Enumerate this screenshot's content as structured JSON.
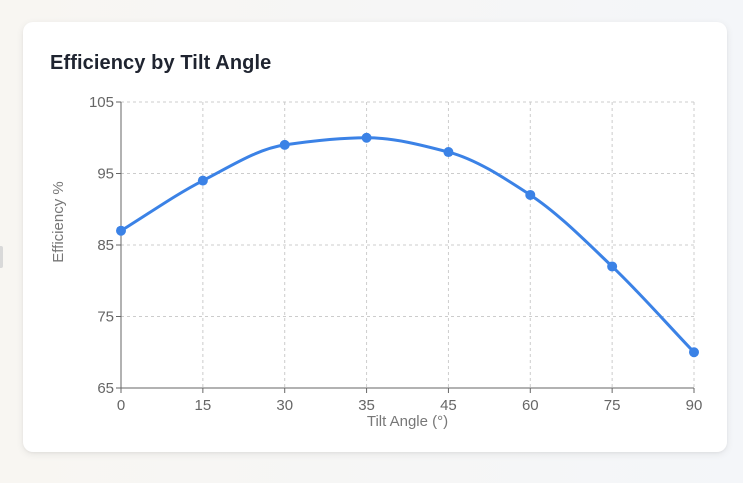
{
  "card": {
    "title": "Efficiency by Tilt Angle"
  },
  "chart_data": {
    "type": "line",
    "title": "Efficiency by Tilt Angle",
    "xlabel": "Tilt Angle (°)",
    "ylabel": "Efficiency %",
    "x": [
      0,
      15,
      30,
      35,
      45,
      60,
      75,
      90
    ],
    "series": [
      {
        "values": [
          87,
          94,
          99,
          100,
          98,
          92,
          82,
          70
        ]
      }
    ],
    "x_ticks": [
      "0",
      "15",
      "30",
      "35",
      "45",
      "60",
      "75",
      "90"
    ],
    "y_ticks": [
      65,
      75,
      85,
      95,
      105
    ],
    "ylim": [
      65,
      105
    ],
    "x_scale": "categorical",
    "grid": true,
    "smooth": true,
    "line_color": "#3b82e6",
    "grid_color": "#cccccc",
    "axis_color": "#666666"
  }
}
